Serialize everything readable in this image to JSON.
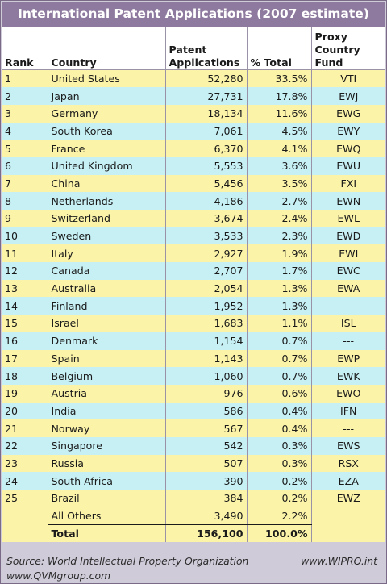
{
  "title": "International Patent Applications (2007 estimate)",
  "headers": {
    "rank": "Rank",
    "country": "Country",
    "patent_line1": "Patent",
    "patent_line2": "Applications",
    "pct": "% Total",
    "fund_line1": "Proxy",
    "fund_line2": "Country",
    "fund_line3": "Fund"
  },
  "chart_data": {
    "type": "table",
    "title": "International Patent Applications (2007 estimate)",
    "columns": [
      "Rank",
      "Country",
      "Patent Applications",
      "% Total",
      "Proxy Country Fund"
    ],
    "rows": [
      [
        "1",
        "United States",
        "52,280",
        "33.5%",
        "VTI"
      ],
      [
        "2",
        "Japan",
        "27,731",
        "17.8%",
        "EWJ"
      ],
      [
        "3",
        "Germany",
        "18,134",
        "11.6%",
        "EWG"
      ],
      [
        "4",
        "South Korea",
        "7,061",
        "4.5%",
        "EWY"
      ],
      [
        "5",
        "France",
        "6,370",
        "4.1%",
        "EWQ"
      ],
      [
        "6",
        "United Kingdom",
        "5,553",
        "3.6%",
        "EWU"
      ],
      [
        "7",
        "China",
        "5,456",
        "3.5%",
        "FXI"
      ],
      [
        "8",
        "Netherlands",
        "4,186",
        "2.7%",
        "EWN"
      ],
      [
        "9",
        "Switzerland",
        "3,674",
        "2.4%",
        "EWL"
      ],
      [
        "10",
        "Sweden",
        "3,533",
        "2.3%",
        "EWD"
      ],
      [
        "11",
        "Italy",
        "2,927",
        "1.9%",
        "EWI"
      ],
      [
        "12",
        "Canada",
        "2,707",
        "1.7%",
        "EWC"
      ],
      [
        "13",
        "Australia",
        "2,054",
        "1.3%",
        "EWA"
      ],
      [
        "14",
        "Finland",
        "1,952",
        "1.3%",
        "---"
      ],
      [
        "15",
        "Israel",
        "1,683",
        "1.1%",
        "ISL"
      ],
      [
        "16",
        "Denmark",
        "1,154",
        "0.7%",
        "---"
      ],
      [
        "17",
        "Spain",
        "1,143",
        "0.7%",
        "EWP"
      ],
      [
        "18",
        "Belgium",
        "1,060",
        "0.7%",
        "EWK"
      ],
      [
        "19",
        "Austria",
        "976",
        "0.6%",
        "EWO"
      ],
      [
        "20",
        "India",
        "586",
        "0.4%",
        "IFN"
      ],
      [
        "21",
        "Norway",
        "567",
        "0.4%",
        "---"
      ],
      [
        "22",
        "Singapore",
        "542",
        "0.3%",
        "EWS"
      ],
      [
        "23",
        "Russia",
        "507",
        "0.3%",
        "RSX"
      ],
      [
        "24",
        "South Africa",
        "390",
        "0.2%",
        "EZA"
      ],
      [
        "25",
        "Brazil",
        "384",
        "0.2%",
        "EWZ"
      ],
      [
        "",
        "All Others",
        "3,490",
        "2.2%",
        ""
      ]
    ],
    "total": [
      "",
      "Total",
      "156,100",
      "100.0%",
      ""
    ]
  },
  "footer": {
    "source": "Source: World Intellectual Property Organization",
    "site": "www.WIPRO.int",
    "qvm": "www.QVMgroup.com"
  },
  "colors": {
    "title_bg": "#8e7a9e",
    "row_yellow": "#fbf3a8",
    "row_cyan": "#c7f0f5",
    "frame_bg": "#cfcbd9"
  }
}
